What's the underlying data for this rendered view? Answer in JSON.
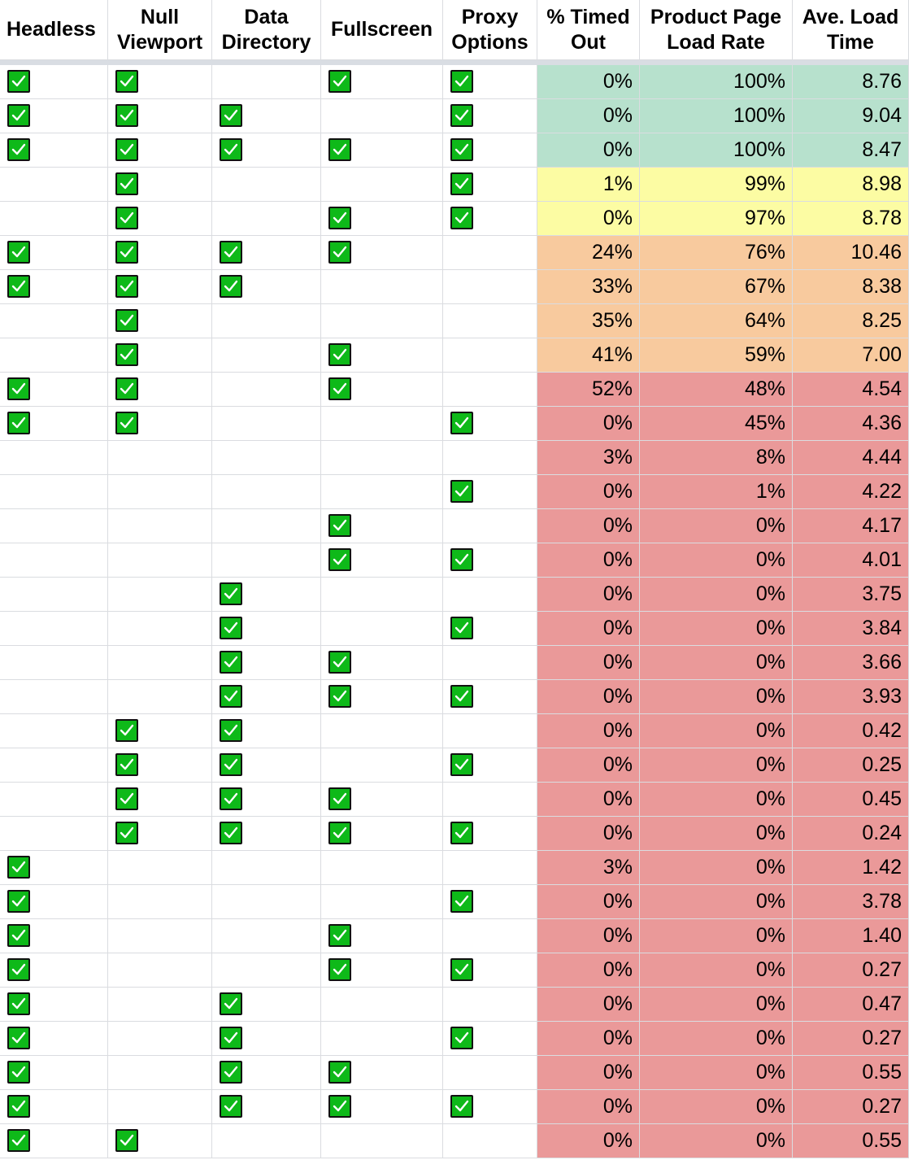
{
  "headers": [
    "Headless",
    "Null Viewport",
    "Data Directory",
    "Fullscreen",
    "Proxy Options",
    "% Timed Out",
    "Product Page Load Rate",
    "Ave. Load Time"
  ],
  "colors": {
    "green": "#b7e1cd",
    "yellow": "#fcfca3",
    "orange": "#f8ca9e",
    "red": "#ea9999",
    "checkbox": "#0eb919"
  },
  "rows": [
    {
      "checks": [
        1,
        1,
        0,
        1,
        1
      ],
      "timed_out": "0%",
      "load_rate": "100%",
      "load_time": "8.76",
      "band": "green"
    },
    {
      "checks": [
        1,
        1,
        1,
        0,
        1
      ],
      "timed_out": "0%",
      "load_rate": "100%",
      "load_time": "9.04",
      "band": "green"
    },
    {
      "checks": [
        1,
        1,
        1,
        1,
        1
      ],
      "timed_out": "0%",
      "load_rate": "100%",
      "load_time": "8.47",
      "band": "green"
    },
    {
      "checks": [
        0,
        1,
        0,
        0,
        1
      ],
      "timed_out": "1%",
      "load_rate": "99%",
      "load_time": "8.98",
      "band": "yellow"
    },
    {
      "checks": [
        0,
        1,
        0,
        1,
        1
      ],
      "timed_out": "0%",
      "load_rate": "97%",
      "load_time": "8.78",
      "band": "yellow"
    },
    {
      "checks": [
        1,
        1,
        1,
        1,
        0
      ],
      "timed_out": "24%",
      "load_rate": "76%",
      "load_time": "10.46",
      "band": "orange"
    },
    {
      "checks": [
        1,
        1,
        1,
        0,
        0
      ],
      "timed_out": "33%",
      "load_rate": "67%",
      "load_time": "8.38",
      "band": "orange"
    },
    {
      "checks": [
        0,
        1,
        0,
        0,
        0
      ],
      "timed_out": "35%",
      "load_rate": "64%",
      "load_time": "8.25",
      "band": "orange"
    },
    {
      "checks": [
        0,
        1,
        0,
        1,
        0
      ],
      "timed_out": "41%",
      "load_rate": "59%",
      "load_time": "7.00",
      "band": "orange"
    },
    {
      "checks": [
        1,
        1,
        0,
        1,
        0
      ],
      "timed_out": "52%",
      "load_rate": "48%",
      "load_time": "4.54",
      "band": "red"
    },
    {
      "checks": [
        1,
        1,
        0,
        0,
        1
      ],
      "timed_out": "0%",
      "load_rate": "45%",
      "load_time": "4.36",
      "band": "red"
    },
    {
      "checks": [
        0,
        0,
        0,
        0,
        0
      ],
      "timed_out": "3%",
      "load_rate": "8%",
      "load_time": "4.44",
      "band": "red"
    },
    {
      "checks": [
        0,
        0,
        0,
        0,
        1
      ],
      "timed_out": "0%",
      "load_rate": "1%",
      "load_time": "4.22",
      "band": "red"
    },
    {
      "checks": [
        0,
        0,
        0,
        1,
        0
      ],
      "timed_out": "0%",
      "load_rate": "0%",
      "load_time": "4.17",
      "band": "red"
    },
    {
      "checks": [
        0,
        0,
        0,
        1,
        1
      ],
      "timed_out": "0%",
      "load_rate": "0%",
      "load_time": "4.01",
      "band": "red"
    },
    {
      "checks": [
        0,
        0,
        1,
        0,
        0
      ],
      "timed_out": "0%",
      "load_rate": "0%",
      "load_time": "3.75",
      "band": "red"
    },
    {
      "checks": [
        0,
        0,
        1,
        0,
        1
      ],
      "timed_out": "0%",
      "load_rate": "0%",
      "load_time": "3.84",
      "band": "red"
    },
    {
      "checks": [
        0,
        0,
        1,
        1,
        0
      ],
      "timed_out": "0%",
      "load_rate": "0%",
      "load_time": "3.66",
      "band": "red"
    },
    {
      "checks": [
        0,
        0,
        1,
        1,
        1
      ],
      "timed_out": "0%",
      "load_rate": "0%",
      "load_time": "3.93",
      "band": "red"
    },
    {
      "checks": [
        0,
        1,
        1,
        0,
        0
      ],
      "timed_out": "0%",
      "load_rate": "0%",
      "load_time": "0.42",
      "band": "red"
    },
    {
      "checks": [
        0,
        1,
        1,
        0,
        1
      ],
      "timed_out": "0%",
      "load_rate": "0%",
      "load_time": "0.25",
      "band": "red"
    },
    {
      "checks": [
        0,
        1,
        1,
        1,
        0
      ],
      "timed_out": "0%",
      "load_rate": "0%",
      "load_time": "0.45",
      "band": "red"
    },
    {
      "checks": [
        0,
        1,
        1,
        1,
        1
      ],
      "timed_out": "0%",
      "load_rate": "0%",
      "load_time": "0.24",
      "band": "red"
    },
    {
      "checks": [
        1,
        0,
        0,
        0,
        0
      ],
      "timed_out": "3%",
      "load_rate": "0%",
      "load_time": "1.42",
      "band": "red"
    },
    {
      "checks": [
        1,
        0,
        0,
        0,
        1
      ],
      "timed_out": "0%",
      "load_rate": "0%",
      "load_time": "3.78",
      "band": "red"
    },
    {
      "checks": [
        1,
        0,
        0,
        1,
        0
      ],
      "timed_out": "0%",
      "load_rate": "0%",
      "load_time": "1.40",
      "band": "red"
    },
    {
      "checks": [
        1,
        0,
        0,
        1,
        1
      ],
      "timed_out": "0%",
      "load_rate": "0%",
      "load_time": "0.27",
      "band": "red"
    },
    {
      "checks": [
        1,
        0,
        1,
        0,
        0
      ],
      "timed_out": "0%",
      "load_rate": "0%",
      "load_time": "0.47",
      "band": "red"
    },
    {
      "checks": [
        1,
        0,
        1,
        0,
        1
      ],
      "timed_out": "0%",
      "load_rate": "0%",
      "load_time": "0.27",
      "band": "red"
    },
    {
      "checks": [
        1,
        0,
        1,
        1,
        0
      ],
      "timed_out": "0%",
      "load_rate": "0%",
      "load_time": "0.55",
      "band": "red"
    },
    {
      "checks": [
        1,
        0,
        1,
        1,
        1
      ],
      "timed_out": "0%",
      "load_rate": "0%",
      "load_time": "0.27",
      "band": "red"
    },
    {
      "checks": [
        1,
        1,
        0,
        0,
        0
      ],
      "timed_out": "0%",
      "load_rate": "0%",
      "load_time": "0.55",
      "band": "red"
    }
  ]
}
